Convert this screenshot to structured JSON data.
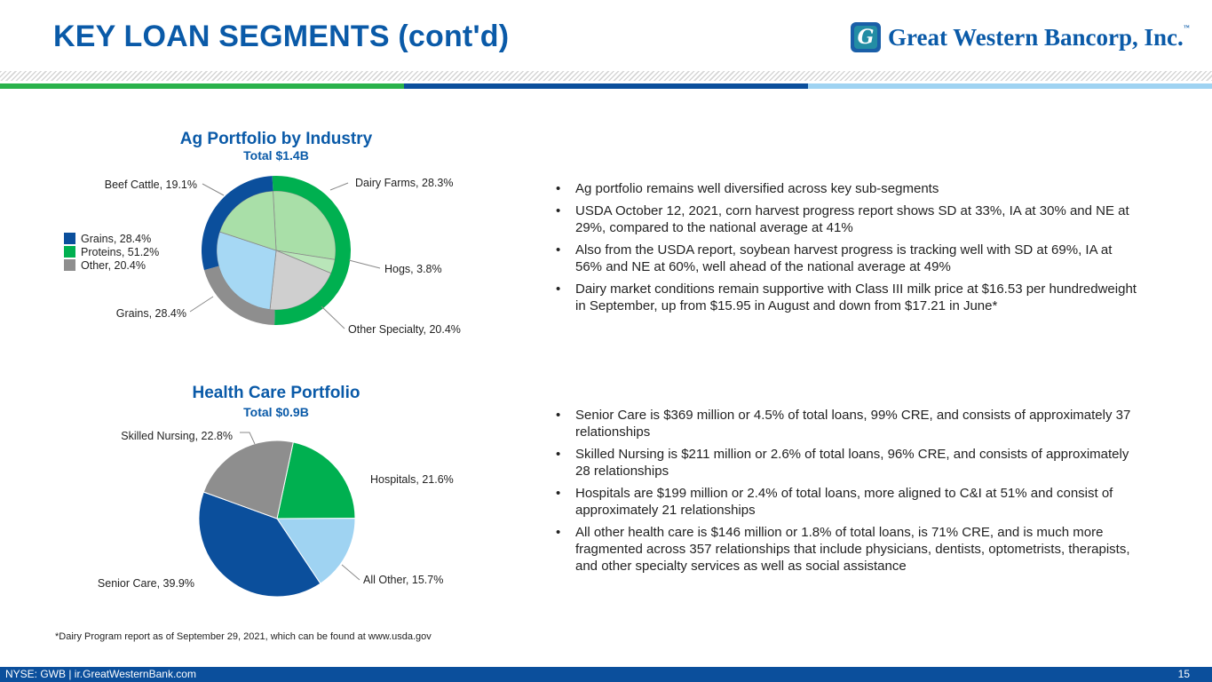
{
  "header": {
    "title": "KEY LOAN SEGMENTS (cont'd)",
    "logo_mark": "G",
    "logo_text": "Great Western Bancorp, Inc.",
    "logo_tm": "™"
  },
  "colors": {
    "brand_blue": "#0a5aa8",
    "green": "#2ab24b",
    "navy": "#0b4f9c",
    "light_blue": "#9fd3f2"
  },
  "ag": {
    "title": "Ag Portfolio by Industry",
    "subtitle": "Total $1.4B",
    "legend": [
      {
        "label": "Grains, 28.4%",
        "color": "#0b4f9c"
      },
      {
        "label": "Proteins, 51.2%",
        "color": "#00b050"
      },
      {
        "label": "Other, 20.4%",
        "color": "#8e8e8e"
      }
    ],
    "bullets": [
      "Ag portfolio remains well diversified across key sub-segments",
      "USDA October 12, 2021, corn harvest progress report shows SD at 33%, IA at 30% and NE at 29%, compared to the national average at 41%",
      "Also from the USDA report, soybean harvest progress is tracking well with SD at 69%, IA at 56% and NE at 60%, well ahead of the national average at 49%",
      "Dairy market conditions remain supportive with Class III milk price at $16.53 per hundredweight in September, up from $15.95 in August and down from $17.21 in June*"
    ]
  },
  "health": {
    "title": "Health Care Portfolio",
    "subtitle": "Total $0.9B",
    "bullets": [
      "Senior Care is $369 million or 4.5% of total loans, 99% CRE, and consists of approximately 37 relationships",
      "Skilled Nursing is $211 million or 2.6% of total loans, 96% CRE, and consists of approximately 28 relationships",
      "Hospitals are $199 million or 2.4% of total loans, more aligned to C&I at 51% and consist of approximately 21 relationships",
      "All other health care is $146 million or 1.8% of total loans, is 71% CRE, and is much more fragmented across 357 relationships that include physicians, dentists, optometrists, therapists, and other specialty services as well as social assistance"
    ]
  },
  "chart_data": [
    {
      "type": "pie",
      "title": "Ag Portfolio by Industry",
      "subtitle": "Total $1.4B",
      "inner": [
        {
          "label": "Dairy Farms",
          "value": 28.3,
          "display": "Dairy Farms, 28.3%",
          "color": "#a9dfa8"
        },
        {
          "label": "Hogs",
          "value": 3.8,
          "display": "Hogs, 3.8%",
          "color": "#b9e6b9"
        },
        {
          "label": "Other Specialty",
          "value": 20.4,
          "display": "Other Specialty, 20.4%",
          "color": "#cfcfcf"
        },
        {
          "label": "Grains",
          "value": 28.4,
          "display": "Grains, 28.4%",
          "color": "#a6d8f4"
        },
        {
          "label": "Beef Cattle",
          "value": 19.1,
          "display": "Beef Cattle, 19.1%",
          "color": "#a9dfa8"
        }
      ],
      "outer": [
        {
          "label": "Proteins",
          "value": 51.2,
          "color": "#00b050"
        },
        {
          "label": "Other",
          "value": 20.4,
          "color": "#8e8e8e"
        },
        {
          "label": "Grains",
          "value": 28.4,
          "color": "#0b4f9c"
        }
      ],
      "legend": [
        "Grains, 28.4%",
        "Proteins, 51.2%",
        "Other, 20.4%"
      ]
    },
    {
      "type": "pie",
      "title": "Health Care Portfolio",
      "subtitle": "Total $0.9B",
      "slices": [
        {
          "label": "Hospitals",
          "value": 21.6,
          "display": "Hospitals, 21.6%",
          "color": "#00b050"
        },
        {
          "label": "All Other",
          "value": 15.7,
          "display": "All Other, 15.7%",
          "color": "#9fd3f2"
        },
        {
          "label": "Senior Care",
          "value": 39.9,
          "display": "Senior Care, 39.9%",
          "color": "#0b4f9c"
        },
        {
          "label": "Skilled Nursing",
          "value": 22.8,
          "display": "Skilled Nursing, 22.8%",
          "color": "#8e8e8e"
        }
      ]
    }
  ],
  "footnote": "*Dairy Program report as of September 29, 2021, which can be found at www.usda.gov",
  "footer": {
    "left": "NYSE: GWB  |  ir.GreatWesternBank.com",
    "page": "15"
  },
  "bullet_char": "•"
}
